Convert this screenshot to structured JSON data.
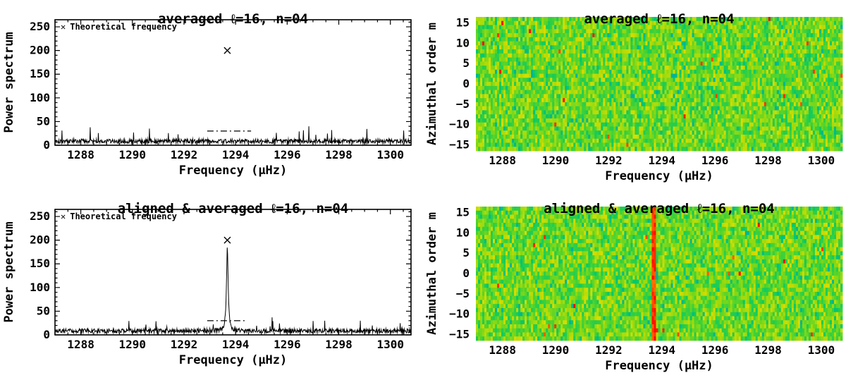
{
  "chart_data": [
    {
      "id": "averaged-power-spectrum",
      "type": "line",
      "title": "averaged ℓ=16, n=04",
      "xlabel": "Frequency (μHz)",
      "ylabel": "Power spectrum",
      "legend": {
        "symbol": "✕",
        "label": "Theoretical frequency"
      },
      "xlim": [
        1287.0,
        1300.8
      ],
      "ylim": [
        0,
        265
      ],
      "xticks": [
        1288,
        1290,
        1292,
        1294,
        1296,
        1298,
        1300
      ],
      "yticks": [
        0,
        50,
        100,
        150,
        200,
        250
      ],
      "noise": {
        "seed": 101,
        "baseline": 4,
        "amplitude": 9,
        "spike_prob": 0.015,
        "spike_amp": 18
      },
      "peak": null,
      "theoretical_marker": {
        "x": 1293.68,
        "y": 200
      },
      "window_line": {
        "y": 30,
        "x1": 1292.9,
        "x2": 1294.6,
        "style": "dash-dot"
      }
    },
    {
      "id": "averaged-m-nu-heatmap",
      "type": "heatmap",
      "title": "averaged ℓ=16, n=04",
      "xlabel": "Frequency (μHz)",
      "ylabel": "Azimuthal order m",
      "xlim": [
        1287.0,
        1300.8
      ],
      "m_range": [
        -16,
        16
      ],
      "xticks": [
        1288,
        1290,
        1292,
        1294,
        1296,
        1298,
        1300
      ],
      "yticks": [
        15,
        10,
        5,
        0,
        -5,
        -10,
        -15
      ],
      "seed": 303,
      "stripe": null,
      "palette": {
        "low": "#00a5b9",
        "mid": "#46d232",
        "high": "#ff0000"
      }
    },
    {
      "id": "aligned-averaged-power-spectrum",
      "type": "line",
      "title": "aligned & averaged ℓ=16, n=04",
      "xlabel": "Frequency (μHz)",
      "ylabel": "Power spectrum",
      "legend": {
        "symbol": "✕",
        "label": "Theoretical frequency"
      },
      "xlim": [
        1287.0,
        1300.8
      ],
      "ylim": [
        0,
        265
      ],
      "xticks": [
        1288,
        1290,
        1292,
        1294,
        1296,
        1298,
        1300
      ],
      "yticks": [
        0,
        50,
        100,
        150,
        200,
        250
      ],
      "noise": {
        "seed": 202,
        "baseline": 4,
        "amplitude": 9,
        "spike_prob": 0.012,
        "spike_amp": 16
      },
      "peak": {
        "x": 1293.68,
        "height": 176,
        "width": 0.038
      },
      "theoretical_marker": {
        "x": 1293.68,
        "y": 200
      },
      "window_line": {
        "y": 30,
        "x1": 1292.9,
        "x2": 1294.45,
        "style": "dash-dot"
      }
    },
    {
      "id": "aligned-averaged-m-nu-heatmap",
      "type": "heatmap",
      "title": "aligned & averaged ℓ=16, n=04",
      "xlabel": "Frequency (μHz)",
      "ylabel": "Azimuthal order m",
      "xlim": [
        1287.0,
        1300.8
      ],
      "m_range": [
        -16,
        16
      ],
      "xticks": [
        1288,
        1290,
        1292,
        1294,
        1296,
        1298,
        1300
      ],
      "yticks": [
        15,
        10,
        5,
        0,
        -5,
        -10,
        -15
      ],
      "seed": 404,
      "stripe": {
        "x": 1293.7,
        "width": 0.18
      },
      "palette": {
        "low": "#00a5b9",
        "mid": "#46d232",
        "high": "#ff0000"
      }
    }
  ]
}
